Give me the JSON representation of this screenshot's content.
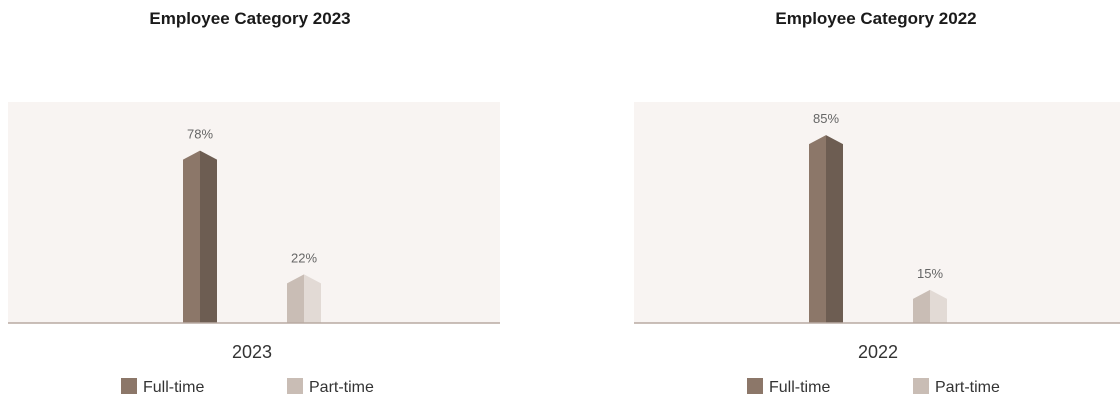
{
  "chart_data": [
    {
      "type": "bar",
      "title": "Employee Category 2023",
      "categories": [
        "2023"
      ],
      "series": [
        {
          "name": "Full-time",
          "values": [
            78
          ],
          "label": "78%",
          "color": "#8c7769"
        },
        {
          "name": "Part-time",
          "values": [
            22
          ],
          "label": "22%",
          "color": "#c9bdb5"
        }
      ],
      "ylim": [
        0,
        100
      ],
      "grid": false,
      "legend": "bottom"
    },
    {
      "type": "bar",
      "title": "Employee Category 2022",
      "categories": [
        "2022"
      ],
      "series": [
        {
          "name": "Full-time",
          "values": [
            85
          ],
          "label": "85%",
          "color": "#8c7769"
        },
        {
          "name": "Part-time",
          "values": [
            15
          ],
          "label": "15%",
          "color": "#c9bdb5"
        }
      ],
      "ylim": [
        0,
        100
      ],
      "grid": false,
      "legend": "bottom"
    }
  ],
  "colors": {
    "plot_background": "#f8f4f2",
    "axis_line": "#b8aaa2",
    "fulltime_shade": "#6d5d52",
    "parttime_shade": "#e2dad5"
  }
}
